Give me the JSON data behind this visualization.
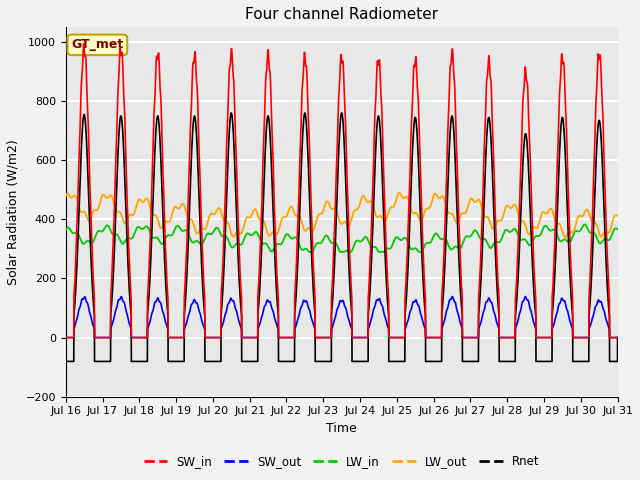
{
  "title": "Four channel Radiometer",
  "xlabel": "Time",
  "ylabel": "Solar Radiation (W/m2)",
  "ylim": [
    -200,
    1050
  ],
  "background_color": "#e8e8e8",
  "fig_background": "#f2f2f2",
  "grid_color": "white",
  "annotation_text": "GT_met",
  "annotation_bg": "#ffffc8",
  "annotation_border": "#c8a000",
  "x_tick_labels": [
    "Jul 16",
    "Jul 17",
    "Jul 18",
    "Jul 19",
    "Jul 20",
    "Jul 21",
    "Jul 22",
    "Jul 23",
    "Jul 24",
    "Jul 25",
    "Jul 26",
    "Jul 27",
    "Jul 28",
    "Jul 29",
    "Jul 30",
    "Jul 31"
  ],
  "n_days": 15,
  "colors": {
    "SW_in": "#ff0000",
    "SW_out": "#0000ff",
    "LW_in": "#00cc00",
    "LW_out": "#ffa500",
    "Rnet": "#000000"
  },
  "SW_in_peaks": [
    980,
    975,
    960,
    955,
    960,
    955,
    950,
    950,
    940,
    940,
    960,
    935,
    900,
    950,
    960
  ],
  "SW_out_peaks": [
    135,
    135,
    130,
    125,
    130,
    125,
    125,
    125,
    130,
    125,
    135,
    130,
    135,
    130,
    125
  ],
  "Rnet_peaks": [
    755,
    750,
    750,
    750,
    760,
    750,
    760,
    760,
    750,
    745,
    750,
    745,
    690,
    745,
    735
  ],
  "Rnet_night_min": -95,
  "LW_in_base": 330,
  "LW_out_base": 415
}
